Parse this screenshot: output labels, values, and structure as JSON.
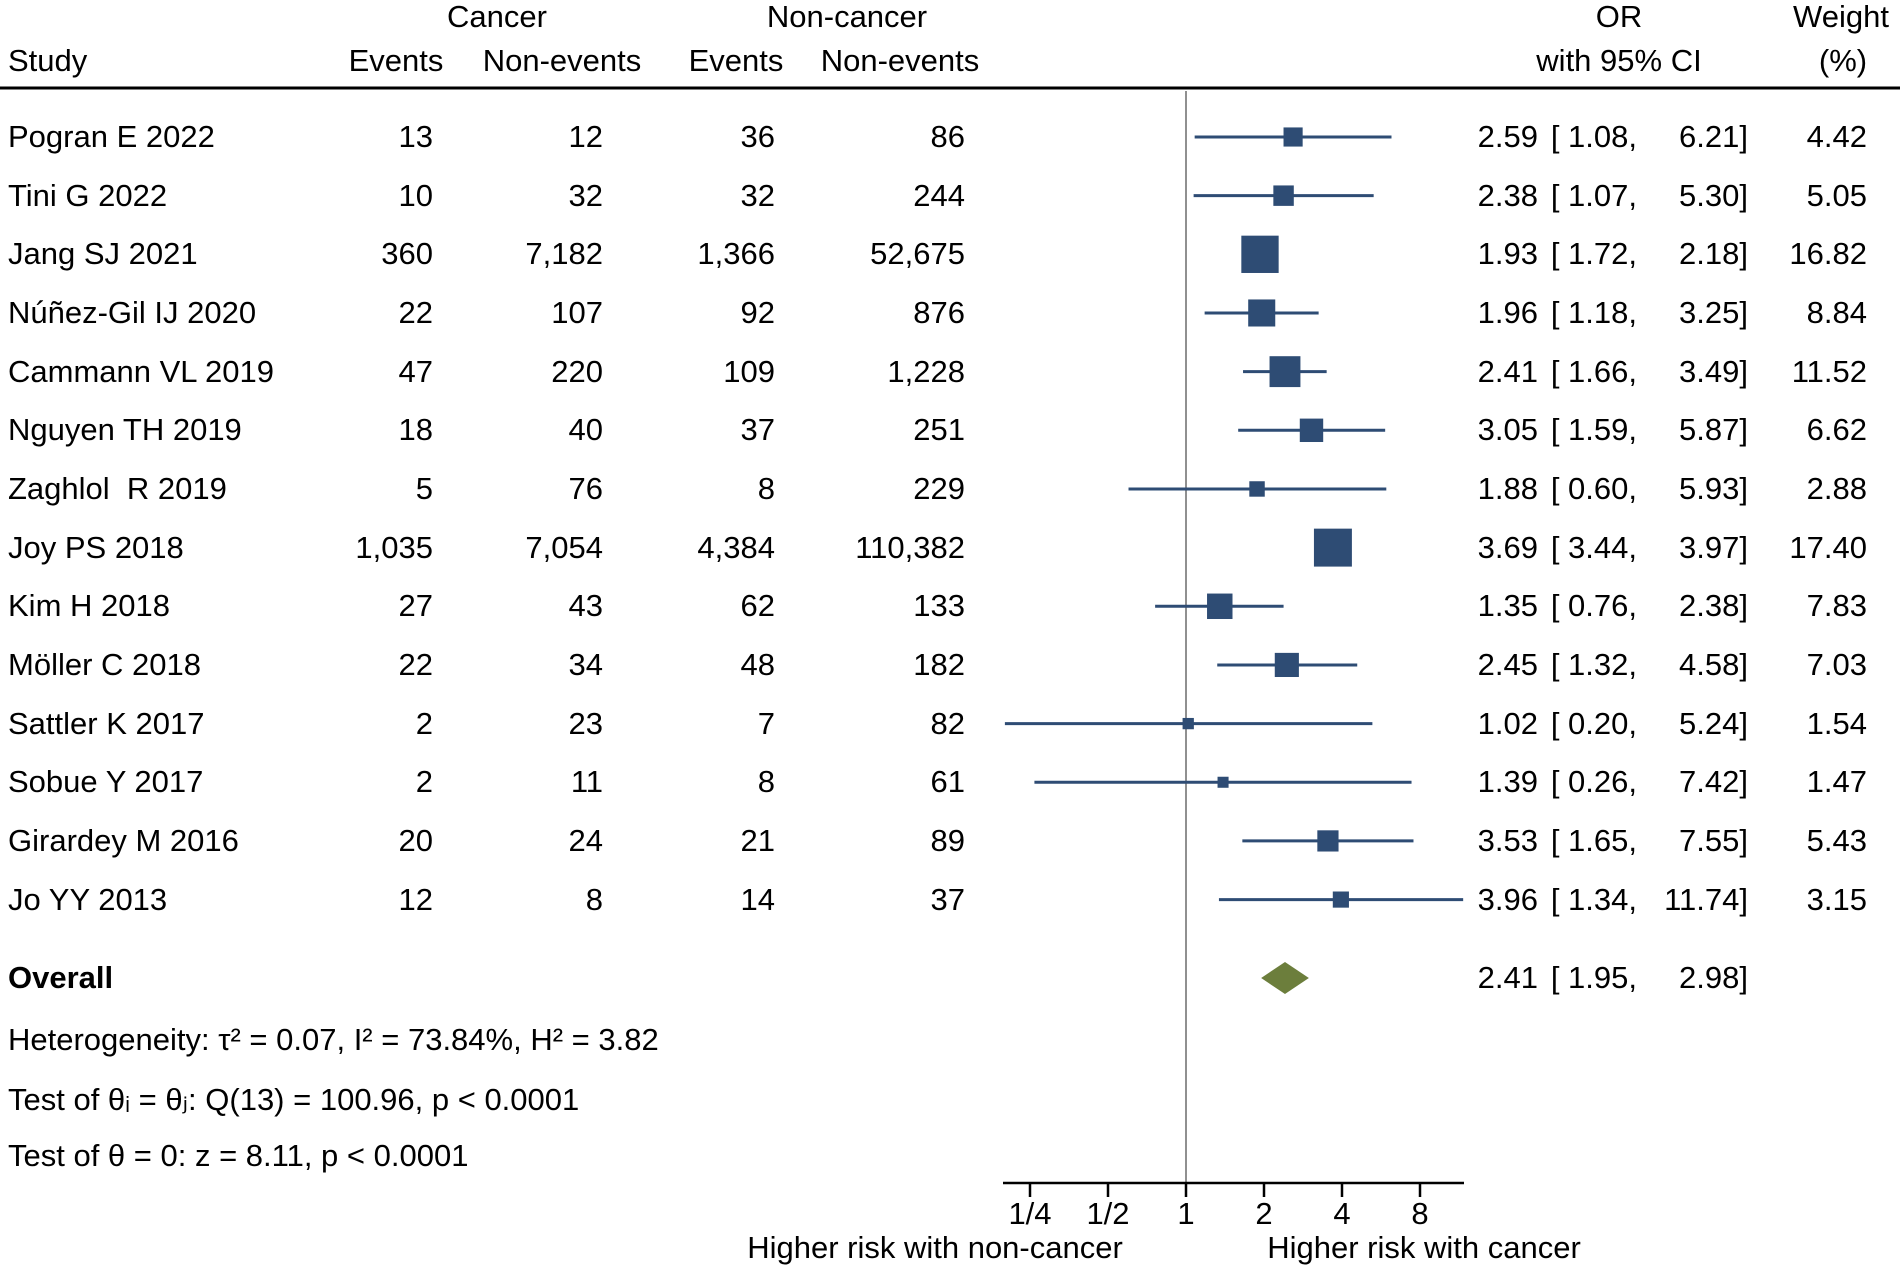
{
  "header": {
    "study": "Study",
    "group_cancer": "Cancer",
    "group_noncancer": "Non-cancer",
    "events_cancer": "Events",
    "nonevents_cancer": "Non-events",
    "events_noncancer": "Events",
    "nonevents_noncancer": "Non-events",
    "or_line1": "OR",
    "or_line2": "with 95% CI",
    "weight_line1": "Weight",
    "weight_line2": "(%)"
  },
  "chart_data": {
    "type": "forest",
    "effect_measure": "OR",
    "x_scale": "log2",
    "axis": {
      "ticks": [
        0.25,
        0.5,
        1,
        2,
        4,
        8
      ],
      "tick_labels": [
        "1/4",
        "1/2",
        "1",
        "2",
        "4",
        "8"
      ],
      "reference_value": 1
    },
    "footnote_left": "Higher risk with non-cancer",
    "footnote_right": "Higher risk with cancer",
    "studies": [
      {
        "name": "Pogran E 2022",
        "cancer_events": "13",
        "cancer_nonevents": "12",
        "noncancer_events": "36",
        "noncancer_nonevents": "86",
        "or": "2.59",
        "lo": "1.08",
        "hi": "6.21",
        "weight": "4.42"
      },
      {
        "name": "Tini G 2022",
        "cancer_events": "10",
        "cancer_nonevents": "32",
        "noncancer_events": "32",
        "noncancer_nonevents": "244",
        "or": "2.38",
        "lo": "1.07",
        "hi": "5.30",
        "weight": "5.05"
      },
      {
        "name": "Jang SJ 2021",
        "cancer_events": "360",
        "cancer_nonevents": "7,182",
        "noncancer_events": "1,366",
        "noncancer_nonevents": "52,675",
        "or": "1.93",
        "lo": "1.72",
        "hi": "2.18",
        "weight": "16.82"
      },
      {
        "name": "Núñez-Gil IJ 2020",
        "cancer_events": "22",
        "cancer_nonevents": "107",
        "noncancer_events": "92",
        "noncancer_nonevents": "876",
        "or": "1.96",
        "lo": "1.18",
        "hi": "3.25",
        "weight": "8.84"
      },
      {
        "name": "Cammann VL 2019",
        "cancer_events": "47",
        "cancer_nonevents": "220",
        "noncancer_events": "109",
        "noncancer_nonevents": "1,228",
        "or": "2.41",
        "lo": "1.66",
        "hi": "3.49",
        "weight": "11.52"
      },
      {
        "name": "Nguyen TH 2019",
        "cancer_events": "18",
        "cancer_nonevents": "40",
        "noncancer_events": "37",
        "noncancer_nonevents": "251",
        "or": "3.05",
        "lo": "1.59",
        "hi": "5.87",
        "weight": "6.62"
      },
      {
        "name": "Zaghlol  R 2019",
        "cancer_events": "5",
        "cancer_nonevents": "76",
        "noncancer_events": "8",
        "noncancer_nonevents": "229",
        "or": "1.88",
        "lo": "0.60",
        "hi": "5.93",
        "weight": "2.88"
      },
      {
        "name": "Joy PS 2018",
        "cancer_events": "1,035",
        "cancer_nonevents": "7,054",
        "noncancer_events": "4,384",
        "noncancer_nonevents": "110,382",
        "or": "3.69",
        "lo": "3.44",
        "hi": "3.97",
        "weight": "17.40"
      },
      {
        "name": "Kim H 2018",
        "cancer_events": "27",
        "cancer_nonevents": "43",
        "noncancer_events": "62",
        "noncancer_nonevents": "133",
        "or": "1.35",
        "lo": "0.76",
        "hi": "2.38",
        "weight": "7.83"
      },
      {
        "name": "Möller C 2018",
        "cancer_events": "22",
        "cancer_nonevents": "34",
        "noncancer_events": "48",
        "noncancer_nonevents": "182",
        "or": "2.45",
        "lo": "1.32",
        "hi": "4.58",
        "weight": "7.03"
      },
      {
        "name": "Sattler K 2017",
        "cancer_events": "2",
        "cancer_nonevents": "23",
        "noncancer_events": "7",
        "noncancer_nonevents": "82",
        "or": "1.02",
        "lo": "0.20",
        "hi": "5.24",
        "weight": "1.54"
      },
      {
        "name": "Sobue Y 2017",
        "cancer_events": "2",
        "cancer_nonevents": "11",
        "noncancer_events": "8",
        "noncancer_nonevents": "61",
        "or": "1.39",
        "lo": "0.26",
        "hi": "7.42",
        "weight": "1.47"
      },
      {
        "name": "Girardey M 2016",
        "cancer_events": "20",
        "cancer_nonevents": "24",
        "noncancer_events": "21",
        "noncancer_nonevents": "89",
        "or": "3.53",
        "lo": "1.65",
        "hi": "7.55",
        "weight": "5.43"
      },
      {
        "name": "Jo YY 2013",
        "cancer_events": "12",
        "cancer_nonevents": "8",
        "noncancer_events": "14",
        "noncancer_nonevents": "37",
        "or": "3.96",
        "lo": "1.34",
        "hi": "11.74",
        "weight": "3.15"
      }
    ],
    "overall": {
      "name": "Overall",
      "or": "2.41",
      "lo": "1.95",
      "hi": "2.98"
    },
    "stats": {
      "heterogeneity": "Heterogeneity: τ² = 0.07, I² = 73.84%, H² = 3.82",
      "test_theta_ij": "Test of θᵢ = θⱼ: Q(13) = 100.96, p < 0.0001",
      "test_theta_zero": "Test of θ = 0: z = 8.11, p < 0.0001"
    }
  },
  "colors": {
    "marker": "#2E4C74",
    "ci_line": "#2E4C74",
    "diamond": "#6C7E3C",
    "axis": "#000000",
    "reference_line": "#6b6b6b"
  }
}
